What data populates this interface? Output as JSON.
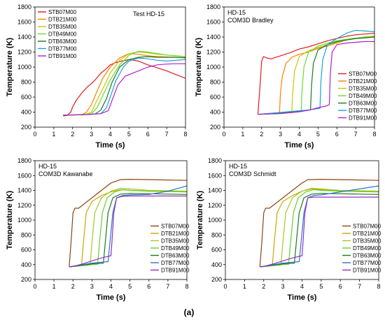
{
  "figure_label": "(a)",
  "chart_data": [
    {
      "type": "line",
      "title": "Test HD-15",
      "subtitle": "",
      "xlabel": "Time (s)",
      "ylabel": "Temperature (K)",
      "xlim": [
        0,
        8
      ],
      "ylim": [
        200,
        1800
      ],
      "xticks": [
        "0",
        "1",
        "2",
        "3",
        "4",
        "5",
        "6",
        "7",
        "8"
      ],
      "yticks": [
        "200",
        "400",
        "600",
        "800",
        "1000",
        "1200",
        "1400",
        "1600",
        "1800"
      ],
      "grid": false,
      "legend_position": "top-left",
      "series": [
        {
          "name": "STB07M00",
          "color": "#e41a1c",
          "x": [
            1.5,
            1.7,
            1.9,
            2.0,
            2.2,
            2.5,
            2.8,
            3.0,
            3.2,
            3.5,
            3.8,
            4.0,
            4.3,
            4.6,
            5.0,
            5.5,
            6.0,
            6.5,
            7.0,
            7.5,
            8.0
          ],
          "y": [
            350,
            355,
            400,
            470,
            560,
            660,
            740,
            780,
            830,
            920,
            980,
            1030,
            1060,
            1080,
            1100,
            1080,
            1030,
            990,
            950,
            900,
            850
          ]
        },
        {
          "name": "DTB21M00",
          "color": "#ff7f00",
          "x": [
            1.5,
            2.0,
            2.5,
            2.7,
            3.0,
            3.3,
            3.6,
            4.0,
            4.5,
            5.0,
            5.5,
            6.0,
            6.5,
            7.0,
            7.5,
            8.0
          ],
          "y": [
            360,
            365,
            370,
            390,
            500,
            680,
            850,
            1000,
            1120,
            1180,
            1170,
            1150,
            1140,
            1135,
            1130,
            1120
          ]
        },
        {
          "name": "DTB35M00",
          "color": "#c8c800",
          "x": [
            1.5,
            2.0,
            2.7,
            3.0,
            3.3,
            3.7,
            4.0,
            4.5,
            5.0,
            5.5,
            6.0,
            6.5,
            7.0,
            7.5,
            8.0
          ],
          "y": [
            360,
            365,
            370,
            400,
            560,
            760,
            920,
            1090,
            1180,
            1200,
            1190,
            1170,
            1160,
            1150,
            1140
          ]
        },
        {
          "name": "DTB49M00",
          "color": "#66dd33",
          "x": [
            1.5,
            2.5,
            3.0,
            3.3,
            3.6,
            4.0,
            4.5,
            5.0,
            5.5,
            6.0,
            6.5,
            7.0,
            7.5,
            8.0
          ],
          "y": [
            360,
            365,
            380,
            460,
            620,
            830,
            1030,
            1160,
            1210,
            1200,
            1180,
            1160,
            1150,
            1140
          ]
        },
        {
          "name": "DTB63M00",
          "color": "#1a7a1a",
          "x": [
            1.5,
            2.5,
            3.2,
            3.5,
            3.8,
            4.1,
            4.5,
            5.0,
            5.5,
            6.0,
            6.5,
            7.0,
            7.5,
            8.0
          ],
          "y": [
            360,
            365,
            375,
            430,
            580,
            800,
            1000,
            1100,
            1130,
            1140,
            1130,
            1130,
            1130,
            1125
          ]
        },
        {
          "name": "DTB77M00",
          "color": "#17a2d8",
          "x": [
            1.5,
            2.5,
            3.5,
            3.8,
            4.0,
            4.3,
            4.7,
            5.0,
            5.5,
            6.0,
            6.5,
            7.0,
            7.5,
            8.0
          ],
          "y": [
            360,
            365,
            380,
            460,
            600,
            820,
            1000,
            1080,
            1120,
            1110,
            1090,
            1080,
            1090,
            1100
          ]
        },
        {
          "name": "DTB91M00",
          "color": "#b020d0",
          "x": [
            1.5,
            2.5,
            3.5,
            3.9,
            4.1,
            4.4,
            4.8,
            5.0,
            5.5,
            6.0,
            6.5,
            7.0,
            7.5,
            8.0
          ],
          "y": [
            360,
            365,
            380,
            420,
            560,
            760,
            880,
            900,
            950,
            1000,
            1030,
            1040,
            1045,
            1045
          ]
        }
      ]
    },
    {
      "type": "line",
      "title": "HD-15",
      "subtitle": "COM3D Bradley",
      "xlabel": "Time (s)",
      "ylabel": "Temperature (K)",
      "xlim": [
        0,
        8
      ],
      "ylim": [
        200,
        1800
      ],
      "xticks": [
        "0",
        "1",
        "2",
        "3",
        "4",
        "5",
        "6",
        "7",
        "8"
      ],
      "yticks": [
        "200",
        "400",
        "600",
        "800",
        "1000",
        "1200",
        "1400",
        "1600",
        "1800"
      ],
      "grid": false,
      "legend_position": "bottom-right",
      "series": [
        {
          "name": "STB07M00",
          "color": "#e41a1c",
          "x": [
            1.8,
            1.9,
            2.0,
            2.1,
            2.3,
            2.5,
            3.0,
            3.5,
            4.0,
            4.5,
            5.0,
            5.5,
            6.0,
            6.5,
            7.0,
            7.5,
            8.0
          ],
          "y": [
            370,
            700,
            1080,
            1140,
            1120,
            1110,
            1150,
            1190,
            1240,
            1270,
            1310,
            1350,
            1380,
            1410,
            1430,
            1440,
            1450
          ]
        },
        {
          "name": "DTB21M00",
          "color": "#ff7f00",
          "x": [
            1.8,
            2.5,
            2.95,
            3.0,
            3.1,
            3.3,
            3.6,
            4.0,
            4.5,
            5.0,
            5.5,
            6.0,
            6.5,
            7.0,
            7.5,
            8.0
          ],
          "y": [
            370,
            378,
            390,
            650,
            880,
            1050,
            1130,
            1170,
            1200,
            1250,
            1280,
            1320,
            1360,
            1380,
            1400,
            1410
          ]
        },
        {
          "name": "DTB35M00",
          "color": "#c8c800",
          "x": [
            1.8,
            3.0,
            3.6,
            3.65,
            3.75,
            4.0,
            4.5,
            5.0,
            5.5,
            6.0,
            6.5,
            7.0,
            7.5,
            8.0
          ],
          "y": [
            370,
            385,
            395,
            650,
            950,
            1140,
            1220,
            1260,
            1300,
            1330,
            1360,
            1380,
            1390,
            1400
          ]
        },
        {
          "name": "DTB49M00",
          "color": "#66dd33",
          "x": [
            1.8,
            3.5,
            4.1,
            4.15,
            4.25,
            4.5,
            5.0,
            5.5,
            6.0,
            6.5,
            7.0,
            7.5,
            8.0
          ],
          "y": [
            370,
            395,
            410,
            700,
            1000,
            1200,
            1280,
            1320,
            1350,
            1370,
            1385,
            1400,
            1405
          ]
        },
        {
          "name": "DTB63M00",
          "color": "#1a7a1a",
          "x": [
            1.8,
            4.0,
            4.6,
            4.65,
            4.75,
            5.0,
            5.5,
            6.0,
            6.5,
            7.0,
            7.5,
            8.0
          ],
          "y": [
            370,
            410,
            430,
            750,
            1050,
            1230,
            1300,
            1340,
            1360,
            1380,
            1390,
            1400
          ]
        },
        {
          "name": "DTB77M00",
          "color": "#17a2d8",
          "x": [
            1.8,
            4.5,
            5.1,
            5.15,
            5.25,
            5.5,
            6.0,
            6.5,
            7.0,
            7.5,
            8.0
          ],
          "y": [
            370,
            430,
            450,
            800,
            1100,
            1300,
            1380,
            1450,
            1490,
            1480,
            1470
          ]
        },
        {
          "name": "DTB91M00",
          "color": "#b020d0",
          "x": [
            1.8,
            3.0,
            4.0,
            4.5,
            5.0,
            5.4,
            5.6,
            5.65,
            5.75,
            6.0,
            6.5,
            7.0,
            7.5,
            8.0
          ],
          "y": [
            370,
            380,
            405,
            425,
            460,
            480,
            500,
            900,
            1200,
            1300,
            1320,
            1330,
            1340,
            1340
          ]
        }
      ]
    },
    {
      "type": "line",
      "title": "HD-15",
      "subtitle": "COM3D Kawanabe",
      "xlabel": "Time (s)",
      "ylabel": "Temperature (K)",
      "xlim": [
        0,
        8
      ],
      "ylim": [
        200,
        1800
      ],
      "xticks": [
        "0",
        "1",
        "2",
        "3",
        "4",
        "5",
        "6",
        "7",
        "8"
      ],
      "yticks": [
        "200",
        "400",
        "600",
        "800",
        "1000",
        "1200",
        "1400",
        "1600",
        "1800"
      ],
      "grid": false,
      "legend_position": "bottom-right",
      "series": [
        {
          "name": "STB07M00",
          "color": "#8b4513",
          "x": [
            1.8,
            1.9,
            2.0,
            2.1,
            2.3,
            2.6,
            3.0,
            3.5,
            4.0,
            4.5,
            5.0,
            6.0,
            7.0,
            8.0
          ],
          "y": [
            370,
            700,
            1100,
            1160,
            1160,
            1220,
            1300,
            1400,
            1500,
            1545,
            1550,
            1545,
            1540,
            1535
          ]
        },
        {
          "name": "DTB21M00",
          "color": "#c8a800",
          "x": [
            1.8,
            2.3,
            2.45,
            2.55,
            2.7,
            3.0,
            3.5,
            4.0,
            4.5,
            5.0,
            6.0,
            7.0,
            8.0
          ],
          "y": [
            370,
            380,
            390,
            700,
            1100,
            1250,
            1330,
            1380,
            1410,
            1400,
            1390,
            1385,
            1380
          ]
        },
        {
          "name": "DTB35M00",
          "color": "#a8c820",
          "x": [
            1.8,
            2.7,
            2.9,
            3.0,
            3.15,
            3.5,
            4.0,
            4.5,
            5.0,
            6.0,
            7.0,
            8.0
          ],
          "y": [
            370,
            390,
            395,
            700,
            1100,
            1300,
            1390,
            1430,
            1420,
            1400,
            1395,
            1390
          ]
        },
        {
          "name": "DTB49M00",
          "color": "#66cc33",
          "x": [
            1.8,
            3.0,
            3.3,
            3.4,
            3.55,
            3.8,
            4.2,
            4.6,
            5.0,
            6.0,
            7.0,
            8.0
          ],
          "y": [
            370,
            400,
            405,
            700,
            1100,
            1300,
            1380,
            1410,
            1400,
            1390,
            1385,
            1380
          ]
        },
        {
          "name": "DTB63M00",
          "color": "#1a7a1a",
          "x": [
            1.8,
            3.0,
            3.6,
            3.7,
            3.85,
            4.1,
            4.5,
            5.0,
            6.0,
            7.0,
            8.0
          ],
          "y": [
            370,
            410,
            420,
            700,
            1100,
            1300,
            1350,
            1360,
            1355,
            1350,
            1345
          ]
        },
        {
          "name": "DTB77M00",
          "color": "#3070d0",
          "x": [
            1.8,
            3.0,
            3.85,
            3.95,
            4.1,
            4.3,
            4.6,
            5.0,
            6.0,
            7.0,
            8.0
          ],
          "y": [
            370,
            420,
            440,
            700,
            1100,
            1300,
            1330,
            1340,
            1345,
            1390,
            1460
          ]
        },
        {
          "name": "DTB91M00",
          "color": "#9030c0",
          "x": [
            1.8,
            2.0,
            2.5,
            3.0,
            3.5,
            4.0,
            4.05,
            4.15,
            4.3,
            4.6,
            5.0,
            6.0,
            7.0,
            8.0
          ],
          "y": [
            370,
            375,
            410,
            450,
            490,
            520,
            700,
            1100,
            1300,
            1320,
            1325,
            1325,
            1325,
            1325
          ]
        }
      ]
    },
    {
      "type": "line",
      "title": "HD-15",
      "subtitle": "COM3D Schmidt",
      "xlabel": "Time (s)",
      "ylabel": "Temperature (K)",
      "xlim": [
        0,
        8
      ],
      "ylim": [
        200,
        1800
      ],
      "xticks": [
        "0",
        "1",
        "2",
        "3",
        "4",
        "5",
        "6",
        "7",
        "8"
      ],
      "yticks": [
        "200",
        "400",
        "600",
        "800",
        "1000",
        "1200",
        "1400",
        "1600",
        "1800"
      ],
      "grid": false,
      "legend_position": "bottom-right",
      "series": [
        {
          "name": "STB07M00",
          "color": "#8b4513",
          "x": [
            1.8,
            1.9,
            2.0,
            2.1,
            2.3,
            2.6,
            3.0,
            3.5,
            4.0,
            4.3,
            5.0,
            6.0,
            7.0,
            8.0
          ],
          "y": [
            370,
            700,
            1100,
            1160,
            1160,
            1220,
            1300,
            1400,
            1500,
            1545,
            1550,
            1545,
            1540,
            1535
          ]
        },
        {
          "name": "DTB21M00",
          "color": "#c8a800",
          "x": [
            1.8,
            2.3,
            2.45,
            2.55,
            2.7,
            3.0,
            3.5,
            4.0,
            4.5,
            5.0,
            6.0,
            7.0,
            8.0
          ],
          "y": [
            370,
            380,
            390,
            700,
            1100,
            1250,
            1330,
            1390,
            1420,
            1410,
            1395,
            1385,
            1380
          ]
        },
        {
          "name": "DTB35M00",
          "color": "#a8c820",
          "x": [
            1.8,
            2.7,
            2.9,
            3.0,
            3.15,
            3.5,
            4.0,
            4.5,
            5.0,
            6.0,
            7.0,
            8.0
          ],
          "y": [
            370,
            390,
            395,
            700,
            1100,
            1300,
            1390,
            1430,
            1420,
            1400,
            1395,
            1390
          ]
        },
        {
          "name": "DTB49M00",
          "color": "#66cc33",
          "x": [
            1.8,
            3.0,
            3.3,
            3.4,
            3.55,
            3.8,
            4.2,
            4.6,
            5.0,
            6.0,
            7.0,
            8.0
          ],
          "y": [
            370,
            400,
            405,
            700,
            1100,
            1300,
            1380,
            1410,
            1400,
            1390,
            1385,
            1380
          ]
        },
        {
          "name": "DTB63M00",
          "color": "#1a7a1a",
          "x": [
            1.8,
            3.0,
            3.6,
            3.7,
            3.85,
            4.1,
            4.5,
            5.0,
            6.0,
            7.0,
            8.0
          ],
          "y": [
            370,
            410,
            420,
            700,
            1100,
            1300,
            1350,
            1360,
            1355,
            1350,
            1345
          ]
        },
        {
          "name": "DTB77M00",
          "color": "#3070d0",
          "x": [
            1.8,
            3.0,
            3.85,
            3.95,
            4.1,
            4.3,
            4.6,
            5.0,
            6.0,
            7.0,
            8.0
          ],
          "y": [
            370,
            420,
            440,
            700,
            1100,
            1300,
            1330,
            1340,
            1380,
            1420,
            1460
          ]
        },
        {
          "name": "DTB91M00",
          "color": "#9030c0",
          "x": [
            1.8,
            2.0,
            2.5,
            3.0,
            3.5,
            4.0,
            4.05,
            4.15,
            4.3,
            4.6,
            5.0,
            6.0,
            7.0,
            8.0
          ],
          "y": [
            370,
            375,
            410,
            450,
            490,
            520,
            700,
            1100,
            1300,
            1310,
            1310,
            1310,
            1310,
            1310
          ]
        }
      ]
    }
  ]
}
